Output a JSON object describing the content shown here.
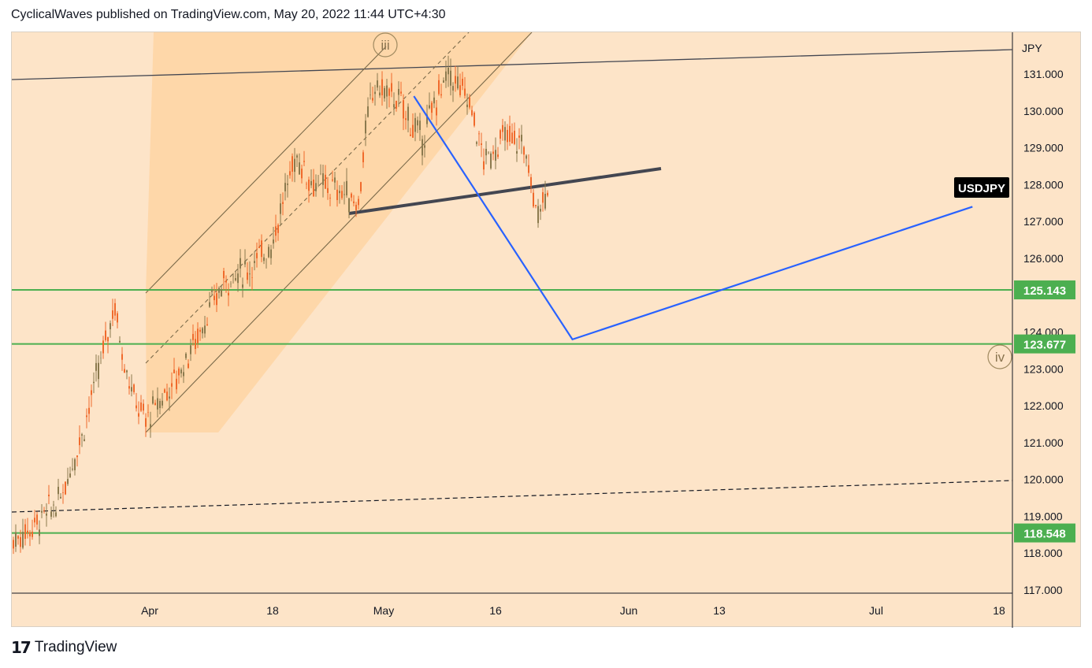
{
  "header": {
    "attribution": "CyclicalWaves published on TradingView.com, May 20, 2022 11:44 UTC+4:30"
  },
  "footer": {
    "brand": "TradingView",
    "logo_icon": "tradingview-logo-icon"
  },
  "chart_data": {
    "type": "candlestick",
    "symbol_label": "USDJPY",
    "currency_label": "JPY",
    "y_ticks": [
      "117.000",
      "118.000",
      "119.000",
      "120.000",
      "121.000",
      "122.000",
      "123.000",
      "124.000",
      "125.000",
      "126.000",
      "127.000",
      "128.000",
      "129.000",
      "130.000",
      "131.000"
    ],
    "x_ticks": [
      "Apr",
      "18",
      "May",
      "16",
      "Jun",
      "13",
      "Jul",
      "18"
    ],
    "ylim": [
      116.9,
      132.5
    ],
    "price_levels": [
      {
        "value": 125.143,
        "label": "125.143",
        "color": "#4caf50"
      },
      {
        "value": 123.677,
        "label": "123.677",
        "color": "#4caf50"
      },
      {
        "value": 118.548,
        "label": "118.548",
        "color": "#4caf50"
      }
    ],
    "wave_labels": [
      "iii",
      "iv"
    ],
    "projection_path": [
      {
        "date": "2022-05-06",
        "price": 130.4
      },
      {
        "date": "2022-05-27",
        "price": 123.8
      },
      {
        "date": "2022-07-19",
        "price": 127.4
      }
    ],
    "colors": {
      "candle_up": "#8b7a4e",
      "candle_down": "#f06a2c",
      "projection": "#2962ff",
      "support": "#4caf50",
      "neckline": "#434651",
      "background": "#fde4c8",
      "channel_fill": "#ffcc8f"
    },
    "grid": false
  }
}
